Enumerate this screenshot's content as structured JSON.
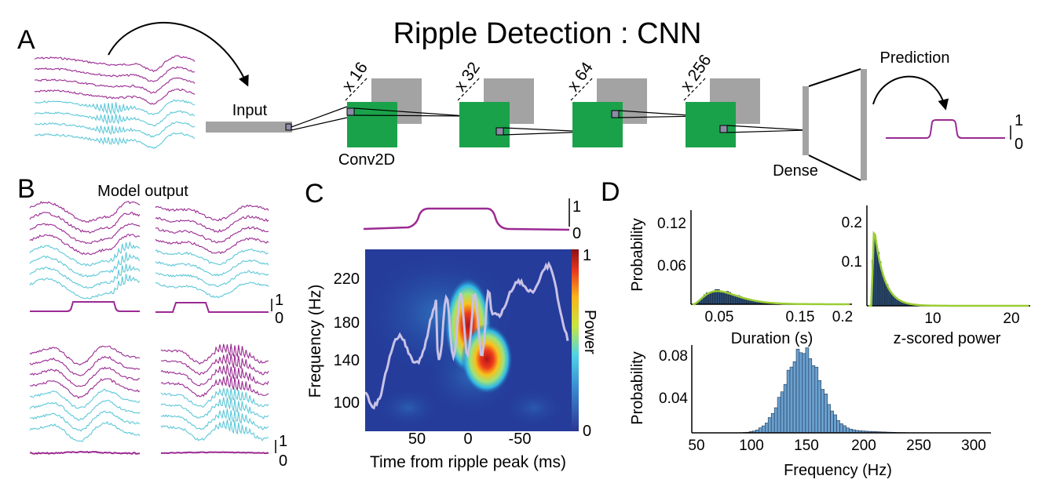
{
  "title": "Ripple Detection : CNN",
  "panel_labels": {
    "a": "A",
    "b": "B",
    "c": "C",
    "d": "D"
  },
  "colors": {
    "magenta": "#9b2a92",
    "cyan": "#5ec8d8",
    "green": "#1aa24a",
    "gray": "#a3a3a3",
    "conv": "#8c8ca8",
    "lime": "#9acd32",
    "hist": "#5b8fbf",
    "hist_dark": "#1f3550"
  },
  "panel_a": {
    "input_label": "Input",
    "conv_label": "Conv2D",
    "dense_label": "Dense",
    "prediction_label": "Prediction",
    "filters": [
      "x 16",
      "x 32",
      "x 64",
      "x 256"
    ],
    "scale_top": "1",
    "scale_bottom": "0"
  },
  "panel_b": {
    "title": "Model output",
    "scale_top": "1",
    "scale_bottom": "0",
    "scale2_top": "1",
    "scale2_bottom": "0"
  },
  "panel_c": {
    "scale_top": "1",
    "scale_bottom": "0",
    "colorbar_top": "1",
    "colorbar_bottom": "0",
    "colorbar_label": "Power",
    "chart_data": {
      "type": "heatmap",
      "xlabel": "Time from ripple peak (ms)",
      "ylabel": "Frequency (Hz)",
      "xticks": [
        "50",
        "0",
        "-50"
      ],
      "yticks": [
        "220",
        "180",
        "140",
        "100"
      ],
      "colorbar_range": [
        0,
        1
      ]
    }
  },
  "panel_d": {
    "duration": {
      "type": "bar",
      "xlabel": "Duration (s)",
      "ylabel": "Probability",
      "xticks": [
        "0.05",
        "0.15",
        "0.2"
      ],
      "yticks": [
        "0.12",
        "0.06"
      ],
      "xlim": [
        0.02,
        0.22
      ],
      "ylim": [
        0,
        0.145
      ]
    },
    "zscore": {
      "type": "bar",
      "xlabel": "z-scored power",
      "xticks": [
        "10",
        "20"
      ],
      "yticks": [
        "0.2",
        "0.1"
      ],
      "xlim": [
        3,
        22
      ],
      "ylim": [
        0,
        0.225
      ]
    },
    "frequency": {
      "type": "bar",
      "xlabel": "Frequency (Hz)",
      "ylabel": "Probability",
      "xticks": [
        "50",
        "100",
        "150",
        "200",
        "250",
        "300"
      ],
      "yticks": [
        "0.08",
        "0.04"
      ],
      "xlim": [
        45,
        315
      ],
      "ylim": [
        0,
        0.085
      ]
    }
  }
}
